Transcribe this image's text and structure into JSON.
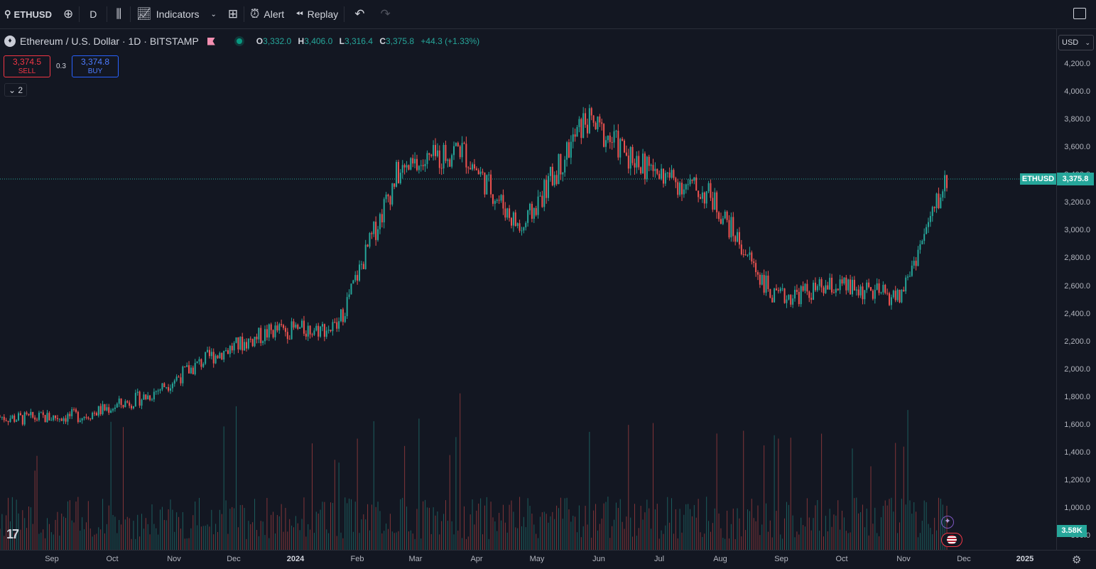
{
  "toolbar": {
    "symbol": "ETHUSD",
    "interval": "D",
    "indicators_label": "Indicators",
    "alert_label": "Alert",
    "replay_label": "Replay"
  },
  "legend": {
    "title": "Ethereum / U.S. Dollar · 1D · BITSTAMP",
    "open_key": "O",
    "open": "3,332.0",
    "high_key": "H",
    "high": "3,406.0",
    "low_key": "L",
    "low": "3,316.4",
    "close_key": "C",
    "close": "3,375.8",
    "change": "+44.3 (+1.33%)"
  },
  "trade": {
    "sell_price": "3,374.5",
    "sell_label": "SELL",
    "spread": "0.3",
    "buy_price": "3,374.8",
    "buy_label": "BUY",
    "collapse_count": "2"
  },
  "axis": {
    "currency": "USD",
    "price_labels": [
      "4,200.0",
      "4,000.0",
      "3,800.0",
      "3,600.0",
      "3,400.0",
      "3,200.0",
      "3,000.0",
      "2,800.0",
      "2,600.0",
      "2,400.0",
      "2,200.0",
      "2,000.0",
      "1,800.0",
      "1,600.0",
      "1,400.0",
      "1,200.0",
      "1,000.0",
      "800.0"
    ],
    "last_price_tag": "3,375.8",
    "symbol_tag": "ETHUSD",
    "volume_tag": "3.58K",
    "time_labels": [
      "Sep",
      "Oct",
      "Nov",
      "Dec",
      "2024",
      "Feb",
      "Mar",
      "Apr",
      "May",
      "Jun",
      "Jul",
      "Aug",
      "Sep",
      "Oct",
      "Nov",
      "Dec",
      "2025"
    ]
  },
  "colors": {
    "up": "#26a69a",
    "down": "#ef5350",
    "background": "#131722"
  },
  "chart_data": {
    "type": "candlestick",
    "ylim": [
      800,
      4200
    ],
    "last_price": 3375.8,
    "monthly_closes": [
      {
        "x": "2023-08-21",
        "y": 1660
      },
      {
        "x": "2023-09-01",
        "y": 1645
      },
      {
        "x": "2023-10-01",
        "y": 1670
      },
      {
        "x": "2023-11-01",
        "y": 1810
      },
      {
        "x": "2023-12-01",
        "y": 2090
      },
      {
        "x": "2024-01-01",
        "y": 2280
      },
      {
        "x": "2024-02-01",
        "y": 2300
      },
      {
        "x": "2024-03-01",
        "y": 3400
      },
      {
        "x": "2024-04-01",
        "y": 3600
      },
      {
        "x": "2024-05-01",
        "y": 3000
      },
      {
        "x": "2024-06-01",
        "y": 3800
      },
      {
        "x": "2024-07-01",
        "y": 3450
      },
      {
        "x": "2024-08-01",
        "y": 3250
      },
      {
        "x": "2024-09-01",
        "y": 2510
      },
      {
        "x": "2024-10-01",
        "y": 2600
      },
      {
        "x": "2024-11-01",
        "y": 2520
      },
      {
        "x": "2024-11-24",
        "y": 3375.8
      }
    ]
  }
}
